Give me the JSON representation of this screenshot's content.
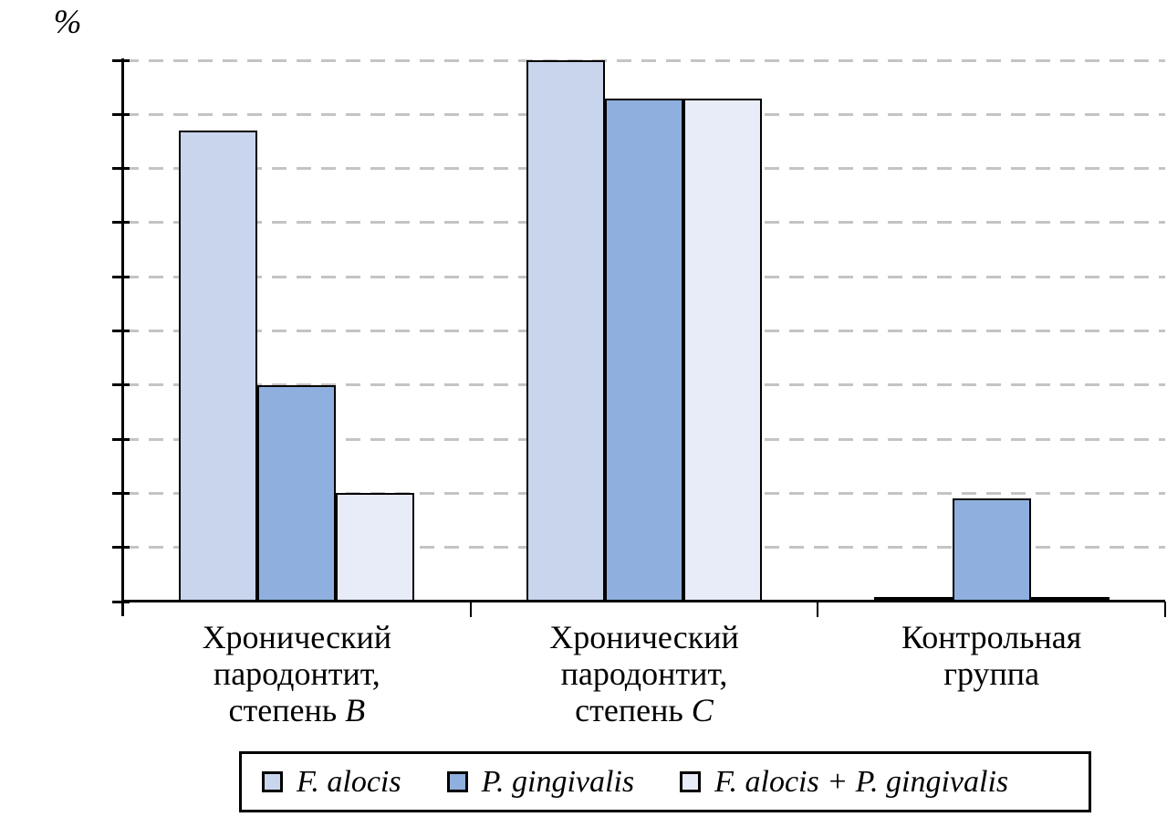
{
  "chart": {
    "y_axis_title": "%"
  },
  "chart_data": {
    "type": "bar",
    "title": "",
    "xlabel": "",
    "ylabel": "%",
    "ylim": [
      0,
      100
    ],
    "y_ticks": [
      0,
      10,
      20,
      30,
      40,
      50,
      60,
      70,
      80,
      90,
      100
    ],
    "grid": "dashed-horizontal-gray",
    "legend_position": "bottom-boxed",
    "categories": [
      "Хронический пародонтит, степень B",
      "Хронический пародонтит, степень C",
      "Контрольная группа"
    ],
    "category_lines": [
      [
        "Хронический",
        "пародонтит,",
        "степень B"
      ],
      [
        "Хронический",
        "пародонтит,",
        "степень C"
      ],
      [
        "Контрольная",
        "группа"
      ]
    ],
    "series": [
      {
        "name": "F. alocis",
        "values": [
          87,
          100,
          0
        ],
        "color": "#c9d5ec",
        "label_color": "#000000",
        "label_dy": [
          115,
          71,
          30
        ]
      },
      {
        "name": "P. gingivalis",
        "values": [
          40,
          93,
          19
        ],
        "color": "#8fb0de",
        "label_color": "#ffffff",
        "label_dy": [
          71,
          78,
          36
        ]
      },
      {
        "name": "F. alocis + P. gingivalis",
        "values": [
          20,
          93,
          0
        ],
        "color": "#e8ecf8",
        "label_color": "#000000",
        "label_dy": [
          43,
          78,
          30
        ]
      }
    ],
    "colors": {
      "axis": "#000000",
      "gridline": "#c4c4c4",
      "bar_border": "#000000",
      "zero_bar": "#000000",
      "background": "#ffffff"
    }
  }
}
